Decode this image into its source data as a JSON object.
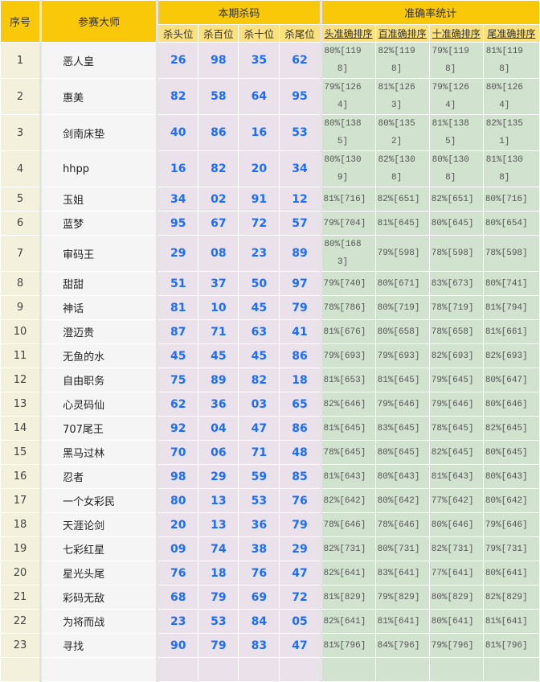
{
  "headers": {
    "index": "序号",
    "master": "参赛大师",
    "kill_group": "本期杀码",
    "acc_group": "准确率统计",
    "kill_cols": [
      "杀头位",
      "杀百位",
      "杀十位",
      "杀尾位"
    ],
    "acc_cols": [
      "头准确排序",
      "百准确排序",
      "十准确排序",
      "尾准确排序"
    ]
  },
  "colors": {
    "header": "#f9c909",
    "subheader": "#fbe07e",
    "kill_number": "#1a6dff",
    "acc_bg": "#d1e2cf",
    "kill_bg": "#ebe1ea"
  },
  "rows": [
    {
      "no": "1",
      "name": "恶人皇",
      "kill": [
        "26",
        "98",
        "35",
        "62"
      ],
      "acc": [
        "80%[1198]",
        "82%[1198]",
        "79%[1198]",
        "81%[1198]"
      ]
    },
    {
      "no": "2",
      "name": "惠美",
      "kill": [
        "82",
        "58",
        "64",
        "95"
      ],
      "acc": [
        "79%[1264]",
        "81%[1263]",
        "79%[1264]",
        "80%[1264]"
      ]
    },
    {
      "no": "3",
      "name": "剑南床垫",
      "kill": [
        "40",
        "86",
        "16",
        "53"
      ],
      "acc": [
        "80%[1385]",
        "80%[1352]",
        "81%[1385]",
        "82%[1351]"
      ]
    },
    {
      "no": "4",
      "name": "hhpp",
      "kill": [
        "16",
        "82",
        "20",
        "34"
      ],
      "acc": [
        "80%[1309]",
        "82%[1308]",
        "80%[1308]",
        "81%[1308]"
      ]
    },
    {
      "no": "5",
      "name": "玉姐",
      "kill": [
        "34",
        "02",
        "91",
        "12"
      ],
      "acc": [
        "81%[716]",
        "82%[651]",
        "82%[651]",
        "80%[716]"
      ]
    },
    {
      "no": "6",
      "name": "蓝梦",
      "kill": [
        "95",
        "67",
        "72",
        "57"
      ],
      "acc": [
        "79%[704]",
        "81%[645]",
        "80%[645]",
        "80%[654]"
      ]
    },
    {
      "no": "7",
      "name": "审码王",
      "kill": [
        "29",
        "08",
        "23",
        "89"
      ],
      "acc": [
        "80%[1683]",
        "79%[598]",
        "78%[598]",
        "78%[598]"
      ]
    },
    {
      "no": "8",
      "name": "甜甜",
      "kill": [
        "51",
        "37",
        "50",
        "97"
      ],
      "acc": [
        "79%[740]",
        "80%[671]",
        "83%[673]",
        "80%[741]"
      ]
    },
    {
      "no": "9",
      "name": "神话",
      "kill": [
        "81",
        "10",
        "45",
        "79"
      ],
      "acc": [
        "78%[786]",
        "80%[719]",
        "78%[719]",
        "81%[794]"
      ]
    },
    {
      "no": "10",
      "name": "澄迈贵",
      "kill": [
        "87",
        "71",
        "63",
        "41"
      ],
      "acc": [
        "81%[676]",
        "80%[658]",
        "78%[658]",
        "81%[661]"
      ]
    },
    {
      "no": "11",
      "name": "无鱼的水",
      "kill": [
        "45",
        "45",
        "45",
        "86"
      ],
      "acc": [
        "79%[693]",
        "79%[693]",
        "82%[693]",
        "82%[693]"
      ]
    },
    {
      "no": "12",
      "name": "自由职务",
      "kill": [
        "75",
        "89",
        "82",
        "18"
      ],
      "acc": [
        "81%[653]",
        "81%[645]",
        "79%[645]",
        "80%[647]"
      ]
    },
    {
      "no": "13",
      "name": "心灵码仙",
      "kill": [
        "62",
        "36",
        "03",
        "65"
      ],
      "acc": [
        "82%[646]",
        "79%[646]",
        "79%[646]",
        "80%[646]"
      ]
    },
    {
      "no": "14",
      "name": "707尾王",
      "kill": [
        "92",
        "04",
        "47",
        "86"
      ],
      "acc": [
        "81%[645]",
        "83%[645]",
        "78%[645]",
        "82%[645]"
      ]
    },
    {
      "no": "15",
      "name": "黑马过林",
      "kill": [
        "70",
        "06",
        "71",
        "48"
      ],
      "acc": [
        "78%[645]",
        "80%[645]",
        "82%[645]",
        "80%[645]"
      ]
    },
    {
      "no": "16",
      "name": "忍者",
      "kill": [
        "98",
        "29",
        "59",
        "85"
      ],
      "acc": [
        "81%[643]",
        "80%[643]",
        "81%[643]",
        "80%[643]"
      ]
    },
    {
      "no": "17",
      "name": "一个女彩民",
      "kill": [
        "80",
        "13",
        "53",
        "76"
      ],
      "acc": [
        "82%[642]",
        "80%[642]",
        "77%[642]",
        "80%[642]"
      ]
    },
    {
      "no": "18",
      "name": "天涯论剑",
      "kill": [
        "20",
        "13",
        "36",
        "79"
      ],
      "acc": [
        "78%[646]",
        "78%[646]",
        "80%[646]",
        "79%[646]"
      ]
    },
    {
      "no": "19",
      "name": "七彩红星",
      "kill": [
        "09",
        "74",
        "38",
        "29"
      ],
      "acc": [
        "82%[731]",
        "80%[731]",
        "82%[731]",
        "79%[731]"
      ]
    },
    {
      "no": "20",
      "name": "星光头尾",
      "kill": [
        "76",
        "18",
        "76",
        "47"
      ],
      "acc": [
        "82%[641]",
        "83%[641]",
        "77%[641]",
        "80%[641]"
      ]
    },
    {
      "no": "21",
      "name": "彩码无敌",
      "kill": [
        "68",
        "79",
        "69",
        "72"
      ],
      "acc": [
        "81%[829]",
        "79%[829]",
        "80%[829]",
        "82%[829]"
      ]
    },
    {
      "no": "22",
      "name": "为将而战",
      "kill": [
        "23",
        "53",
        "84",
        "05"
      ],
      "acc": [
        "82%[641]",
        "81%[641]",
        "80%[641]",
        "81%[641]"
      ]
    },
    {
      "no": "23",
      "name": "寻找",
      "kill": [
        "90",
        "79",
        "83",
        "47"
      ],
      "acc": [
        "81%[796]",
        "84%[796]",
        "79%[796]",
        "81%[796]"
      ]
    }
  ]
}
